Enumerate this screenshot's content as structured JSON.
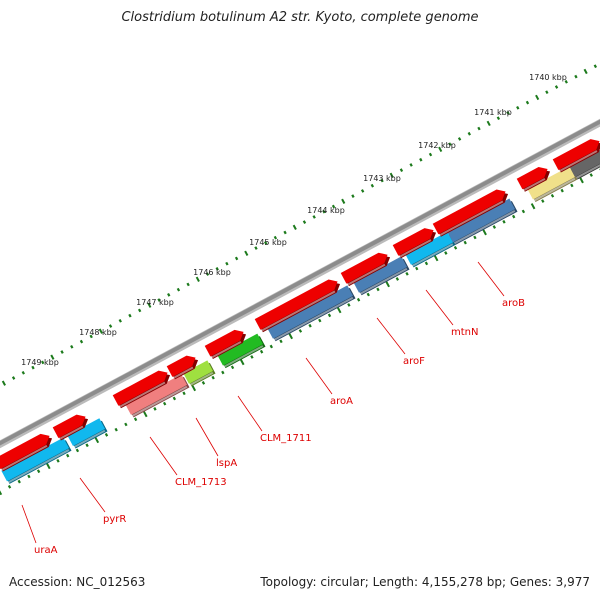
{
  "title": "Clostridium botulinum A2 str. Kyoto, complete genome",
  "footer": {
    "accession": "Accession: NC_012563",
    "summary": "Topology: circular; Length: 4,155,278 bp; Genes: 3,977"
  },
  "kbp_labels": [
    "1740 kbp",
    "1741 kbp",
    "1742 kbp",
    "1743 kbp",
    "1744 kbp",
    "1745 kbp",
    "1746 kbp",
    "1747 kbp",
    "1748 kbp",
    "1749 kbp"
  ],
  "gene_labels": [
    "uraA",
    "pyrR",
    "CLM_1713",
    "lspA",
    "CLM_1711",
    "aroA",
    "aroF",
    "mtnN",
    "aroB"
  ],
  "colors": {
    "backbone": "#8c8c8c",
    "forward_gene": "#ee0000",
    "reverse_cyan": "#11b8ee",
    "reverse_steel": "#4a7fb5",
    "reverse_pink": "#f07f7f",
    "reverse_lime": "#9fe040",
    "reverse_green": "#22bb22",
    "reverse_khaki": "#f0e08a",
    "reverse_dark": "#666666",
    "tick": "#1c7a1c",
    "label": "#dd0000"
  }
}
